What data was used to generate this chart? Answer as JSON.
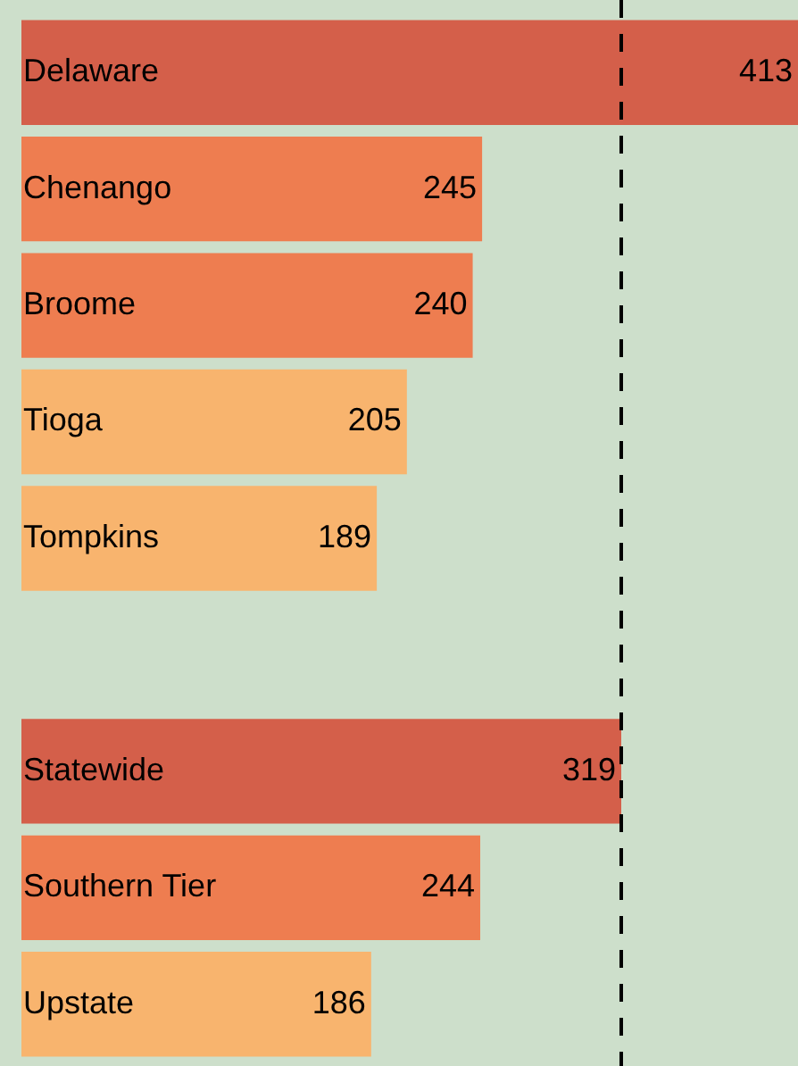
{
  "chart_data": {
    "type": "bar",
    "orientation": "horizontal",
    "categories": [
      "Delaware",
      "Chenango",
      "Broome",
      "Tioga",
      "Tompkins",
      null,
      "Statewide",
      "Southern Tier",
      "Upstate"
    ],
    "values": [
      413,
      245,
      240,
      205,
      189,
      null,
      319,
      244,
      186
    ],
    "colors": [
      "#d45f4a",
      "#ee7d50",
      "#ee7d50",
      "#f8b46e",
      "#f8b46e",
      "#f8b46e",
      "#d45f4a",
      "#ee7d50",
      "#f8b46e"
    ],
    "data_labels": true,
    "ref_lines": [
      {
        "axis": "x",
        "value": 319,
        "color": "#000000",
        "line_style": "dashed"
      }
    ],
    "legend": false
  }
}
